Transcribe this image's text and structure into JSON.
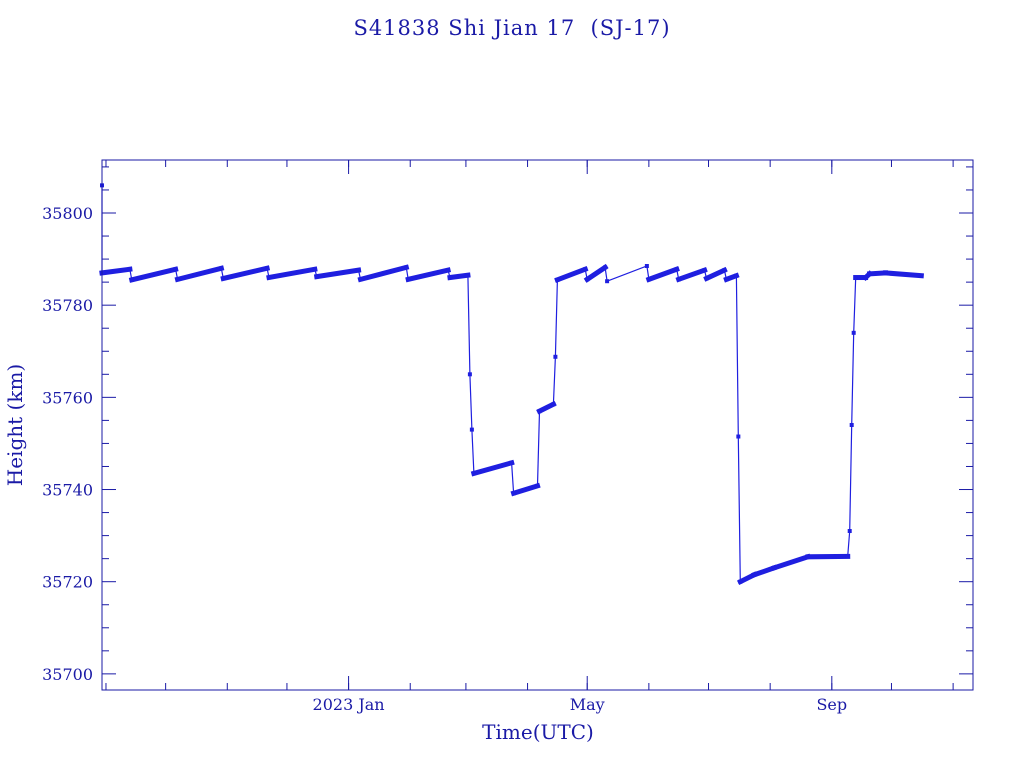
{
  "chart_data": {
    "type": "line",
    "title": "S41838 Shi Jian 17  (SJ-17)",
    "xlabel": "Time(UTC)",
    "ylabel": "Height (km)",
    "x_range": [
      "2022-08-30",
      "2023-11-11"
    ],
    "ylim": [
      35696.5,
      35811.5
    ],
    "y_ticks": [
      35700,
      35720,
      35740,
      35760,
      35780,
      35800
    ],
    "y_tick_labels": [
      "35700",
      "35720",
      "35740",
      "35760",
      "35780",
      "35800"
    ],
    "x_ticks": [
      {
        "date": "2023-01-01",
        "label": "2023 Jan"
      },
      {
        "date": "2023-05-01",
        "label": "May"
      },
      {
        "date": "2023-09-01",
        "label": "Sep"
      }
    ],
    "grid": false,
    "color": "#1f1fe0",
    "series": [
      {
        "points": [
          [
            "2022-08-30",
            35806
          ],
          [
            "2022-08-30",
            35787
          ],
          [
            "2022-09-13",
            35787.8
          ],
          [
            "2022-09-14",
            35785.5
          ],
          [
            "2022-10-06",
            35787.8
          ],
          [
            "2022-10-07",
            35785.6
          ],
          [
            "2022-10-29",
            35788.0
          ],
          [
            "2022-10-30",
            35785.8
          ],
          [
            "2022-11-21",
            35788.0
          ],
          [
            "2022-11-22",
            35786.0
          ],
          [
            "2022-12-15",
            35787.8
          ],
          [
            "2022-12-16",
            35786.2
          ],
          [
            "2023-01-06",
            35787.6
          ],
          [
            "2023-01-07",
            35785.6
          ],
          [
            "2023-01-30",
            35788.2
          ],
          [
            "2023-01-31",
            35785.6
          ],
          [
            "2023-02-20",
            35787.6
          ],
          [
            "2023-02-21",
            35786.0
          ],
          [
            "2023-03-02",
            35786.5
          ],
          [
            "2023-03-03",
            35765
          ],
          [
            "2023-03-04",
            35753
          ],
          [
            "2023-03-05",
            35743.5
          ],
          [
            "2023-03-24",
            35745.8
          ],
          [
            "2023-03-25",
            35739.2
          ],
          [
            "2023-04-06",
            35740.8
          ],
          [
            "2023-04-07",
            35757
          ],
          [
            "2023-04-14",
            35758.5
          ],
          [
            "2023-04-15",
            35768.8
          ],
          [
            "2023-04-16",
            35785.5
          ],
          [
            "2023-04-30",
            35787.8
          ],
          [
            "2023-05-01",
            35785.6
          ],
          [
            "2023-05-10",
            35788.2
          ],
          [
            "2023-05-11",
            35785.2
          ],
          [
            "2023-05-31",
            35788.5
          ],
          [
            "2023-06-01",
            35785.6
          ],
          [
            "2023-06-15",
            35787.8
          ],
          [
            "2023-06-16",
            35785.6
          ],
          [
            "2023-06-29",
            35787.6
          ],
          [
            "2023-06-30",
            35785.8
          ],
          [
            "2023-07-09",
            35787.6
          ],
          [
            "2023-07-10",
            35785.6
          ],
          [
            "2023-07-15",
            35786.4
          ],
          [
            "2023-07-16",
            35751.5
          ],
          [
            "2023-07-17",
            35720.0
          ],
          [
            "2023-07-24",
            35721.5
          ],
          [
            "2023-08-03",
            35723.0
          ],
          [
            "2023-08-20",
            35725.4
          ],
          [
            "2023-09-09",
            35725.5
          ],
          [
            "2023-09-10",
            35731
          ],
          [
            "2023-09-11",
            35754
          ],
          [
            "2023-09-12",
            35774
          ],
          [
            "2023-09-13",
            35786.0
          ],
          [
            "2023-09-18",
            35786.0
          ],
          [
            "2023-09-20",
            35786.8
          ],
          [
            "2023-09-28",
            35787.0
          ],
          [
            "2023-10-16",
            35786.4
          ]
        ]
      }
    ]
  }
}
